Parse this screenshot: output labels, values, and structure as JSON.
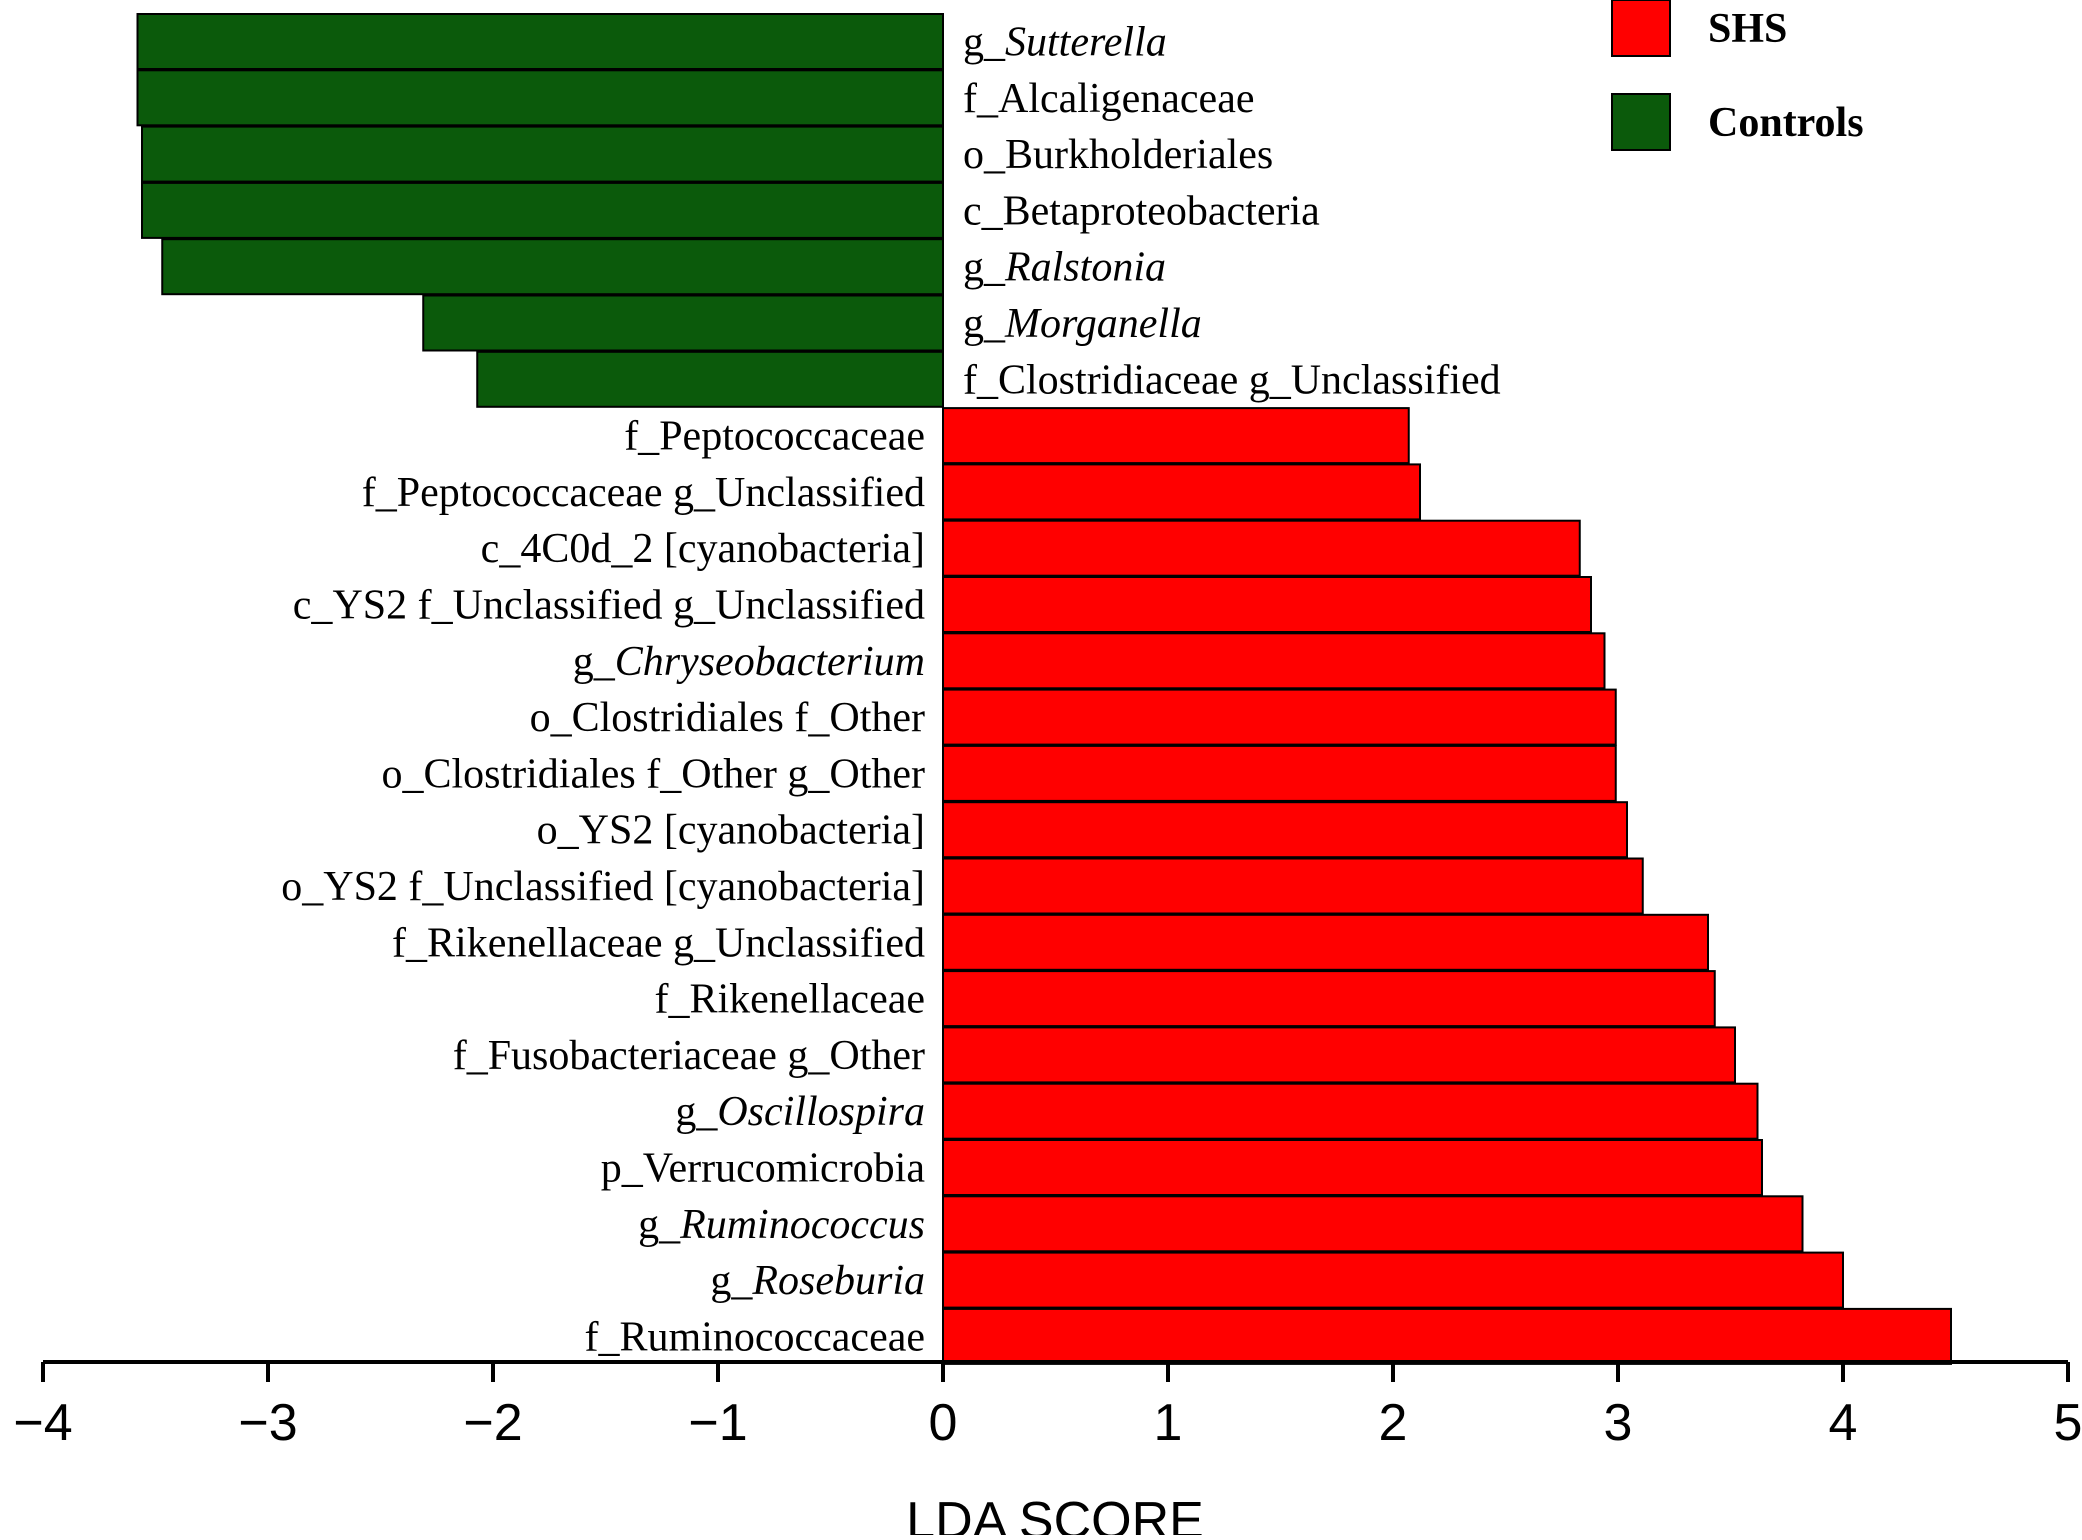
{
  "chart_data": {
    "type": "bar",
    "orientation": "horizontal",
    "xlabel": "LDA SCORE",
    "xlim": [
      -4,
      5
    ],
    "xticks": [
      -4,
      -3,
      -2,
      -1,
      0,
      1,
      2,
      3,
      4,
      5
    ],
    "tick_labels": [
      "−4",
      "−3",
      "−2",
      "−1",
      "0",
      "1",
      "2",
      "3",
      "4",
      "5"
    ],
    "grid": false,
    "legend_position": "top-right",
    "series": [
      {
        "name": "SHS",
        "color": "#ff0000"
      },
      {
        "name": "Controls",
        "color": "#0b5a0b"
      }
    ],
    "bars": [
      {
        "prefix": "g_",
        "name": "Sutterella",
        "italic": true,
        "value": -3.58,
        "group": "Controls"
      },
      {
        "prefix": "f_",
        "name": "Alcaligenaceae",
        "italic": false,
        "value": -3.58,
        "group": "Controls"
      },
      {
        "prefix": "o_",
        "name": "Burkholderiales",
        "italic": false,
        "value": -3.56,
        "group": "Controls"
      },
      {
        "prefix": "c_",
        "name": "Betaproteobacteria",
        "italic": false,
        "value": -3.56,
        "group": "Controls"
      },
      {
        "prefix": "g_",
        "name": "Ralstonia",
        "italic": true,
        "value": -3.47,
        "group": "Controls"
      },
      {
        "prefix": "g_",
        "name": "Morganella",
        "italic": true,
        "value": -2.31,
        "group": "Controls"
      },
      {
        "prefix": "f_",
        "name": "Clostridiaceae g_Unclassified",
        "italic": false,
        "value": -2.07,
        "group": "Controls"
      },
      {
        "prefix": "f_",
        "name": "Peptococcaceae",
        "italic": false,
        "value": 2.07,
        "group": "SHS"
      },
      {
        "prefix": "f_",
        "name": "Peptococcaceae g_Unclassified",
        "italic": false,
        "value": 2.12,
        "group": "SHS"
      },
      {
        "prefix": "c_",
        "name": "4C0d_2 [cyanobacteria]",
        "italic": false,
        "value": 2.83,
        "group": "SHS"
      },
      {
        "prefix": "c_",
        "name": "YS2 f_Unclassified g_Unclassified",
        "italic": false,
        "value": 2.88,
        "group": "SHS"
      },
      {
        "prefix": "g_",
        "name": "Chryseobacterium",
        "italic": true,
        "value": 2.94,
        "group": "SHS"
      },
      {
        "prefix": "o_",
        "name": "Clostridiales f_Other",
        "italic": false,
        "value": 2.99,
        "group": "SHS"
      },
      {
        "prefix": "o_",
        "name": "Clostridiales f_Other g_Other",
        "italic": false,
        "value": 2.99,
        "group": "SHS"
      },
      {
        "prefix": "o_",
        "name": "YS2 [cyanobacteria]",
        "italic": false,
        "value": 3.04,
        "group": "SHS"
      },
      {
        "prefix": "o_",
        "name": "YS2 f_Unclassified [cyanobacteria]",
        "italic": false,
        "value": 3.11,
        "group": "SHS"
      },
      {
        "prefix": "f_",
        "name": "Rikenellaceae g_Unclassified",
        "italic": false,
        "value": 3.4,
        "group": "SHS"
      },
      {
        "prefix": "f_",
        "name": "Rikenellaceae",
        "italic": false,
        "value": 3.43,
        "group": "SHS"
      },
      {
        "prefix": "f_",
        "name": "Fusobacteriaceae g_Other",
        "italic": false,
        "value": 3.52,
        "group": "SHS"
      },
      {
        "prefix": "g_",
        "name": "Oscillospira",
        "italic": true,
        "value": 3.62,
        "group": "SHS"
      },
      {
        "prefix": "p_",
        "name": "Verrucomicrobia",
        "italic": false,
        "value": 3.64,
        "group": "SHS"
      },
      {
        "prefix": "g_",
        "name": "Ruminococcus",
        "italic": true,
        "value": 3.82,
        "group": "SHS"
      },
      {
        "prefix": "g_",
        "name": "Roseburia",
        "italic": true,
        "value": 4.0,
        "group": "SHS"
      },
      {
        "prefix": "f_",
        "name": "Ruminococcaceae",
        "italic": false,
        "value": 4.48,
        "group": "SHS"
      }
    ]
  }
}
